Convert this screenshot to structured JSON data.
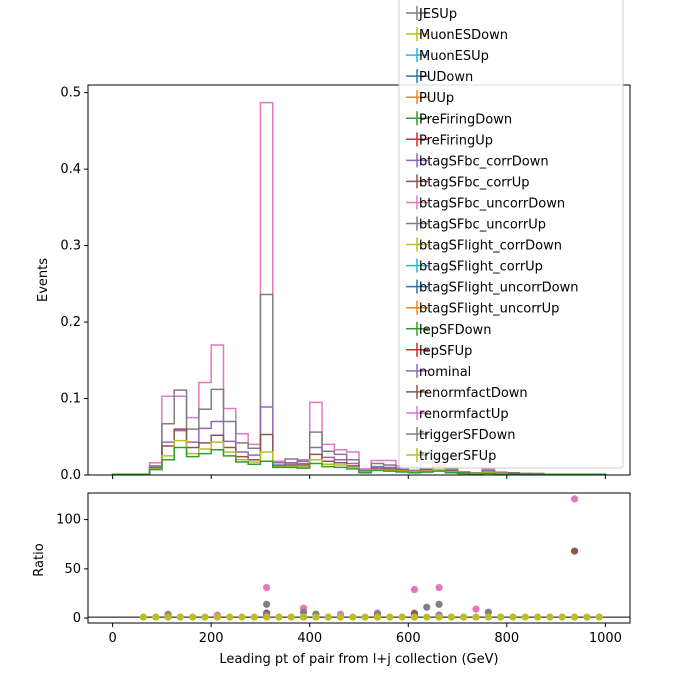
{
  "chart_data": [
    {
      "type": "line",
      "panel": "main",
      "xlabel": "",
      "ylabel": "Events",
      "xlim": [
        -50,
        1050
      ],
      "ylim": [
        0,
        0.51
      ],
      "yticks": [
        0.0,
        0.1,
        0.2,
        0.3,
        0.4,
        0.5
      ],
      "ytick_labels": [
        "0.0",
        "0.1",
        "0.2",
        "0.3",
        "0.4",
        "0.5"
      ],
      "bin_edges": [
        0,
        25,
        50,
        75,
        100,
        125,
        150,
        175,
        200,
        225,
        250,
        275,
        300,
        325,
        350,
        375,
        400,
        425,
        450,
        475,
        500,
        525,
        550,
        575,
        600,
        625,
        650,
        675,
        700,
        725,
        750,
        775,
        800,
        825,
        850,
        875,
        900,
        925,
        950,
        975,
        1000
      ],
      "legend_position": "top-right",
      "series": [
        {
          "name": "renormfactUp",
          "color": "#e377c2",
          "values": [
            0.001,
            0.001,
            0.001,
            0.016,
            0.103,
            0.103,
            0.075,
            0.121,
            0.17,
            0.087,
            0.054,
            0.04,
            0.487,
            0.018,
            0.015,
            0.02,
            0.095,
            0.04,
            0.033,
            0.03,
            0.008,
            0.019,
            0.019,
            0.012,
            0.01,
            0.004,
            0.038,
            0.01,
            0.004,
            0.003,
            0.008,
            0.004,
            0.003,
            0.002,
            0.002,
            0.001,
            0.001,
            0.001,
            0.001,
            0.001
          ]
        },
        {
          "name": "triggerSFDown",
          "color": "#7f7f7f",
          "values": [
            0.001,
            0.001,
            0.001,
            0.012,
            0.067,
            0.111,
            0.06,
            0.086,
            0.112,
            0.07,
            0.042,
            0.035,
            0.236,
            0.016,
            0.021,
            0.018,
            0.056,
            0.031,
            0.027,
            0.02,
            0.006,
            0.015,
            0.013,
            0.009,
            0.006,
            0.016,
            0.023,
            0.008,
            0.004,
            0.003,
            0.006,
            0.003,
            0.003,
            0.002,
            0.002,
            0.001,
            0.001,
            0.001,
            0.001,
            0.001
          ]
        },
        {
          "name": "btagSFbc_corrDown",
          "color": "#9467bd",
          "values": [
            0.001,
            0.001,
            0.001,
            0.01,
            0.043,
            0.058,
            0.043,
            0.061,
            0.07,
            0.044,
            0.03,
            0.026,
            0.089,
            0.013,
            0.016,
            0.015,
            0.036,
            0.023,
            0.02,
            0.015,
            0.005,
            0.011,
            0.01,
            0.007,
            0.005,
            0.009,
            0.013,
            0.006,
            0.003,
            0.002,
            0.004,
            0.002,
            0.002,
            0.002,
            0.001,
            0.001,
            0.001,
            0.001,
            0.001,
            0.001
          ]
        },
        {
          "name": "renormfactDown",
          "color": "#8c564b",
          "values": [
            0.001,
            0.001,
            0.001,
            0.009,
            0.038,
            0.06,
            0.036,
            0.042,
            0.052,
            0.036,
            0.024,
            0.02,
            0.053,
            0.012,
            0.013,
            0.013,
            0.027,
            0.018,
            0.016,
            0.012,
            0.004,
            0.009,
            0.008,
            0.006,
            0.004,
            0.007,
            0.01,
            0.005,
            0.003,
            0.002,
            0.003,
            0.002,
            0.002,
            0.001,
            0.001,
            0.001,
            0.001,
            0.001,
            0.001,
            0.001
          ]
        },
        {
          "name": "triggerSFUp",
          "color": "#bcbd22",
          "values": [
            0.001,
            0.001,
            0.001,
            0.008,
            0.025,
            0.045,
            0.028,
            0.034,
            0.043,
            0.03,
            0.02,
            0.017,
            0.03,
            0.011,
            0.011,
            0.011,
            0.02,
            0.014,
            0.013,
            0.01,
            0.004,
            0.007,
            0.006,
            0.005,
            0.004,
            0.005,
            0.007,
            0.004,
            0.002,
            0.002,
            0.003,
            0.002,
            0.001,
            0.001,
            0.001,
            0.001,
            0.001,
            0.001,
            0.001,
            0.001
          ]
        },
        {
          "name": "nominal",
          "color": "#2ca02c",
          "values": [
            0.001,
            0.001,
            0.001,
            0.007,
            0.02,
            0.036,
            0.024,
            0.028,
            0.033,
            0.025,
            0.017,
            0.014,
            0.018,
            0.01,
            0.01,
            0.009,
            0.015,
            0.011,
            0.01,
            0.008,
            0.003,
            0.006,
            0.005,
            0.004,
            0.003,
            0.004,
            0.005,
            0.003,
            0.002,
            0.001,
            0.002,
            0.001,
            0.001,
            0.001,
            0.001,
            0.001,
            0.001,
            0.001,
            0.001,
            0.001
          ]
        }
      ]
    },
    {
      "type": "scatter",
      "panel": "ratio",
      "xlabel": "Leading pt of pair from l+j collection (GeV)",
      "ylabel": "Ratio",
      "xlim": [
        -50,
        1050
      ],
      "ylim": [
        -5,
        127
      ],
      "xticks": [
        0,
        200,
        400,
        600,
        800,
        1000
      ],
      "xtick_labels": [
        "0",
        "200",
        "400",
        "600",
        "800",
        "1000"
      ],
      "yticks": [
        0,
        50,
        100
      ],
      "ytick_labels": [
        "0",
        "50",
        "100"
      ],
      "reference_line": 1,
      "x": [
        62.5,
        87.5,
        112.5,
        137.5,
        162.5,
        187.5,
        212.5,
        237.5,
        262.5,
        287.5,
        312.5,
        337.5,
        362.5,
        387.5,
        412.5,
        437.5,
        462.5,
        487.5,
        512.5,
        537.5,
        562.5,
        587.5,
        612.5,
        637.5,
        662.5,
        687.5,
        712.5,
        737.5,
        762.5,
        787.5,
        812.5,
        837.5,
        862.5,
        887.5,
        912.5,
        937.5,
        962.5,
        987.5
      ],
      "series": [
        {
          "name": "renormfactUp",
          "color": "#e377c2",
          "points": [
            [
              112.5,
              4
            ],
            [
              212.5,
              3
            ],
            [
              312.5,
              31
            ],
            [
              387.5,
              10
            ],
            [
              462.5,
              4
            ],
            [
              537.5,
              5
            ],
            [
              612.5,
              29
            ],
            [
              662.5,
              31
            ],
            [
              737.5,
              9
            ],
            [
              937.5,
              121
            ]
          ]
        },
        {
          "name": "triggerSFDown",
          "color": "#7f7f7f",
          "points": [
            [
              112.5,
              3
            ],
            [
              312.5,
              14
            ],
            [
              387.5,
              6
            ],
            [
              412.5,
              4
            ],
            [
              537.5,
              4
            ],
            [
              612.5,
              5
            ],
            [
              637.5,
              11
            ],
            [
              662.5,
              14
            ],
            [
              762.5,
              6
            ]
          ]
        },
        {
          "name": "renormfactDown",
          "color": "#8c564b",
          "points": [
            [
              312.5,
              5
            ],
            [
              612.5,
              4
            ],
            [
              937.5,
              68
            ]
          ]
        },
        {
          "name": "btagSFbc_corrDown",
          "color": "#9467bd",
          "points": [
            [
              312.5,
              3
            ],
            [
              662.5,
              3
            ]
          ]
        },
        {
          "name": "triggerSFUp",
          "color": "#bcbd22",
          "points": [
            [
              62.5,
              1
            ],
            [
              87.5,
              1
            ],
            [
              112.5,
              1
            ],
            [
              137.5,
              1
            ],
            [
              162.5,
              1
            ],
            [
              187.5,
              1
            ],
            [
              212.5,
              1
            ],
            [
              237.5,
              1
            ],
            [
              262.5,
              1
            ],
            [
              287.5,
              1
            ],
            [
              312.5,
              1
            ],
            [
              337.5,
              1
            ],
            [
              362.5,
              1
            ],
            [
              387.5,
              1
            ],
            [
              412.5,
              1
            ],
            [
              437.5,
              1
            ],
            [
              462.5,
              1
            ],
            [
              487.5,
              1
            ],
            [
              512.5,
              1
            ],
            [
              537.5,
              1
            ],
            [
              562.5,
              1
            ],
            [
              587.5,
              1
            ],
            [
              612.5,
              1
            ],
            [
              637.5,
              1
            ],
            [
              662.5,
              1
            ],
            [
              687.5,
              1
            ],
            [
              712.5,
              1
            ],
            [
              737.5,
              1
            ],
            [
              762.5,
              1
            ],
            [
              787.5,
              1
            ],
            [
              812.5,
              1
            ],
            [
              837.5,
              1
            ],
            [
              862.5,
              1
            ],
            [
              887.5,
              1
            ],
            [
              912.5,
              1
            ],
            [
              937.5,
              1
            ],
            [
              962.5,
              1
            ],
            [
              987.5,
              1
            ]
          ]
        }
      ]
    }
  ],
  "legend": {
    "entries": [
      {
        "label": "JESUp",
        "color": "#7f7f7f"
      },
      {
        "label": "MuonESDown",
        "color": "#bcbd22"
      },
      {
        "label": "MuonESUp",
        "color": "#17becf"
      },
      {
        "label": "PUDown",
        "color": "#1f77b4"
      },
      {
        "label": "PUUp",
        "color": "#ff7f0e"
      },
      {
        "label": "PreFiringDown",
        "color": "#2ca02c"
      },
      {
        "label": "PreFiringUp",
        "color": "#d62728"
      },
      {
        "label": "btagSFbc_corrDown",
        "color": "#9467bd"
      },
      {
        "label": "btagSFbc_corrUp",
        "color": "#8c564b"
      },
      {
        "label": "btagSFbc_uncorrDown",
        "color": "#e377c2"
      },
      {
        "label": "btagSFbc_uncorrUp",
        "color": "#7f7f7f"
      },
      {
        "label": "btagSFlight_corrDown",
        "color": "#bcbd22"
      },
      {
        "label": "btagSFlight_corrUp",
        "color": "#17becf"
      },
      {
        "label": "btagSFlight_uncorrDown",
        "color": "#1f77b4"
      },
      {
        "label": "btagSFlight_uncorrUp",
        "color": "#ff7f0e"
      },
      {
        "label": "lepSFDown",
        "color": "#2ca02c"
      },
      {
        "label": "lepSFUp",
        "color": "#d62728"
      },
      {
        "label": "nominal",
        "color": "#9467bd"
      },
      {
        "label": "renormfactDown",
        "color": "#8c564b"
      },
      {
        "label": "renormfactUp",
        "color": "#e377c2"
      },
      {
        "label": "triggerSFDown",
        "color": "#7f7f7f"
      },
      {
        "label": "triggerSFUp",
        "color": "#bcbd22"
      }
    ]
  }
}
